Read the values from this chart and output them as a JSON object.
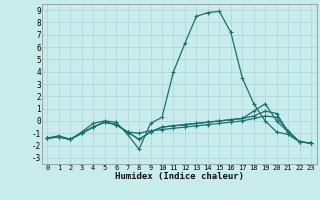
{
  "xlabel": "Humidex (Indice chaleur)",
  "bg_color": "#c8ecec",
  "grid_color": "#b0d8d8",
  "line_color": "#1a7070",
  "xlim": [
    -0.5,
    23.5
  ],
  "ylim": [
    -3.5,
    9.5
  ],
  "xticks": [
    0,
    1,
    2,
    3,
    4,
    5,
    6,
    7,
    8,
    9,
    10,
    11,
    12,
    13,
    14,
    15,
    16,
    17,
    18,
    19,
    20,
    21,
    22,
    23
  ],
  "yticks": [
    -3,
    -2,
    -1,
    0,
    1,
    2,
    3,
    4,
    5,
    6,
    7,
    8,
    9
  ],
  "series": [
    {
      "x": [
        0,
        1,
        2,
        3,
        4,
        5,
        6,
        7,
        8,
        9,
        10,
        11,
        12,
        13,
        14,
        15,
        16,
        17,
        18,
        19,
        20,
        21,
        22,
        23
      ],
      "y": [
        -1.4,
        -1.2,
        -1.5,
        -0.9,
        -0.2,
        0.0,
        -0.1,
        -1.1,
        -2.3,
        -0.2,
        0.3,
        4.0,
        6.3,
        8.5,
        8.8,
        8.9,
        7.2,
        3.5,
        1.4,
        0.0,
        -0.9,
        -1.1,
        -1.7,
        -1.8
      ]
    },
    {
      "x": [
        0,
        1,
        2,
        3,
        4,
        5,
        6,
        7,
        8,
        9,
        10,
        11,
        12,
        13,
        14,
        15,
        16,
        17,
        18,
        19,
        20,
        21,
        22,
        23
      ],
      "y": [
        -1.4,
        -1.3,
        -1.5,
        -1.0,
        -0.5,
        -0.1,
        -0.3,
        -0.9,
        -1.0,
        -0.8,
        -0.7,
        -0.6,
        -0.5,
        -0.4,
        -0.3,
        -0.2,
        -0.1,
        0.0,
        0.2,
        0.4,
        0.3,
        -0.8,
        -1.7,
        -1.8
      ]
    },
    {
      "x": [
        0,
        1,
        2,
        3,
        4,
        5,
        6,
        7,
        8,
        9,
        10,
        11,
        12,
        13,
        14,
        15,
        16,
        17,
        18,
        19,
        20,
        21,
        22,
        23
      ],
      "y": [
        -1.4,
        -1.3,
        -1.5,
        -1.0,
        -0.5,
        -0.1,
        -0.3,
        -0.9,
        -1.5,
        -0.9,
        -0.5,
        -0.4,
        -0.3,
        -0.2,
        -0.1,
        0.0,
        0.1,
        0.2,
        0.4,
        0.8,
        0.6,
        -0.9,
        -1.7,
        -1.8
      ]
    },
    {
      "x": [
        0,
        1,
        2,
        3,
        4,
        5,
        6,
        7,
        8,
        9,
        10,
        11,
        12,
        13,
        14,
        15,
        16,
        17,
        18,
        19,
        20,
        21,
        22,
        23
      ],
      "y": [
        -1.4,
        -1.3,
        -1.5,
        -1.0,
        -0.5,
        -0.1,
        -0.3,
        -0.9,
        -1.5,
        -0.9,
        -0.5,
        -0.4,
        -0.3,
        -0.2,
        -0.1,
        0.0,
        0.1,
        0.2,
        0.8,
        1.4,
        0.0,
        -0.9,
        -1.7,
        -1.8
      ]
    }
  ]
}
